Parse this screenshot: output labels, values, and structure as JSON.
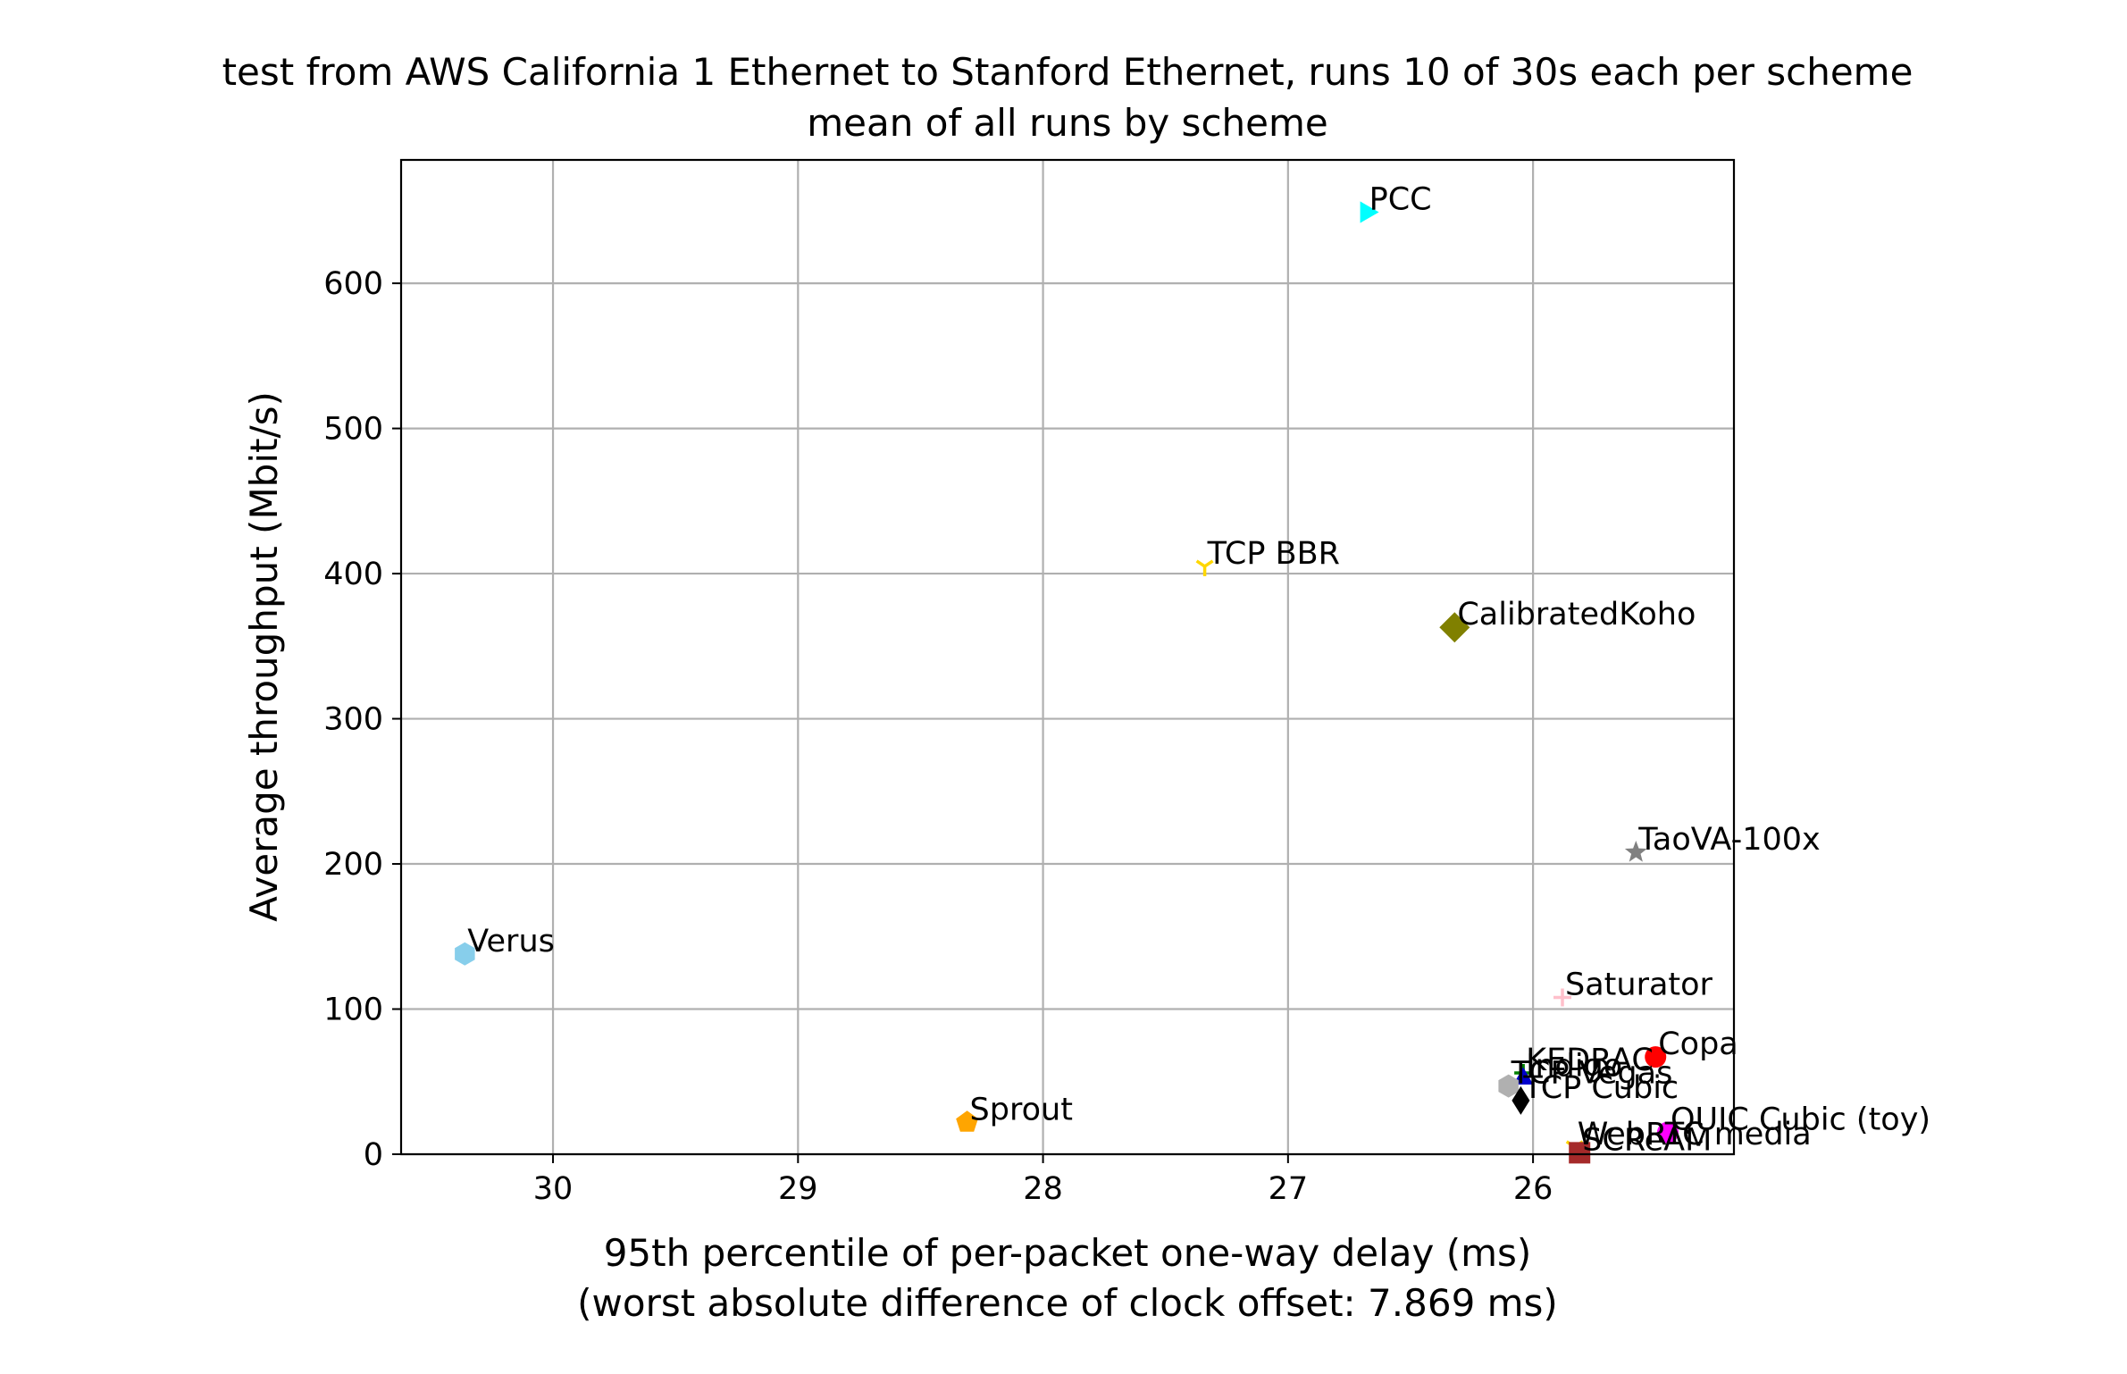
{
  "chart_data": {
    "type": "scatter",
    "title": "test from AWS California 1 Ethernet to Stanford Ethernet, runs 10 of 30s each per scheme",
    "subtitle": "mean of all runs by scheme",
    "xlabel": "95th percentile of per-packet one-way delay (ms)",
    "xlabel2": "(worst absolute difference of clock offset: 7.869 ms)",
    "ylabel": "Average throughput (Mbit/s)",
    "x_inverted": true,
    "xlim": [
      30.62,
      25.18
    ],
    "ylim": [
      0,
      685
    ],
    "grid": true,
    "xticks": [
      30,
      29,
      28,
      27,
      26
    ],
    "yticks": [
      0,
      100,
      200,
      300,
      400,
      500,
      600
    ],
    "points": [
      {
        "name": "PCC",
        "x": 26.68,
        "y": 649,
        "color": "#00ffff",
        "marker": "triangle-right"
      },
      {
        "name": "TCP BBR",
        "x": 27.34,
        "y": 405,
        "color": "#ffd700",
        "marker": "tri-down"
      },
      {
        "name": "CalibratedKoho",
        "x": 26.32,
        "y": 363,
        "color": "#808000",
        "marker": "diamond"
      },
      {
        "name": "TaoVA-100x",
        "x": 25.58,
        "y": 208,
        "color": "#808080",
        "marker": "star"
      },
      {
        "name": "Verus",
        "x": 30.36,
        "y": 138,
        "color": "#87ceeb",
        "marker": "hexagon"
      },
      {
        "name": "Saturator",
        "x": 25.88,
        "y": 108,
        "color": "#ffc0cb",
        "marker": "plus"
      },
      {
        "name": "Copa",
        "x": 25.5,
        "y": 67,
        "color": "#ff0000",
        "marker": "circle"
      },
      {
        "name": "KEDRAC",
        "x": 26.04,
        "y": 56,
        "color": "#008000",
        "marker": "plus"
      },
      {
        "name": "Indigo",
        "x": 26.04,
        "y": 52,
        "color": "#0000cd",
        "marker": "triangle-up"
      },
      {
        "name": "TCP Vegas",
        "x": 26.1,
        "y": 47,
        "color": "#b0b0b0",
        "marker": "hexagon"
      },
      {
        "name": "TCP Cubic",
        "x": 26.05,
        "y": 37,
        "color": "#000000",
        "marker": "thin-diamond"
      },
      {
        "name": "Sprout",
        "x": 28.31,
        "y": 22,
        "color": "#ffa500",
        "marker": "pentagon"
      },
      {
        "name": "QUIC Cubic (toy)",
        "x": 25.45,
        "y": 15,
        "color": "#ff00ff",
        "marker": "circle"
      },
      {
        "name": "WebRTC media",
        "x": 25.83,
        "y": 5,
        "color": "#ffd700",
        "marker": "tri-down"
      },
      {
        "name": "SCReAM",
        "x": 25.81,
        "y": 1,
        "color": "#a52a2a",
        "marker": "square"
      }
    ]
  }
}
